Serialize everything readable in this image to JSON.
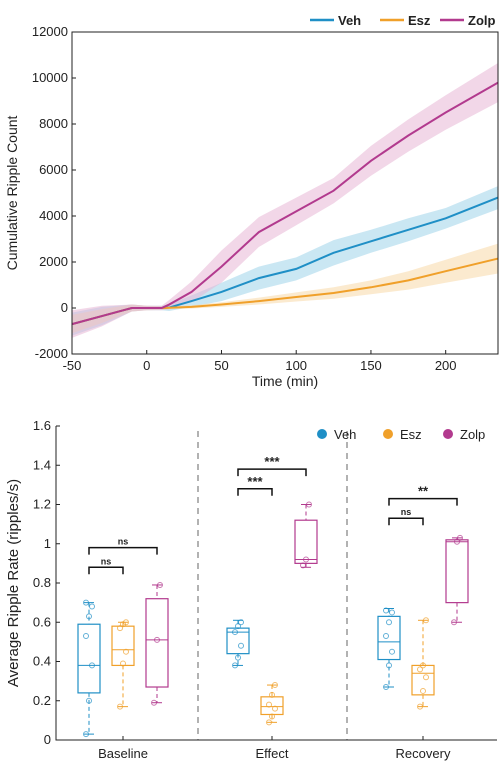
{
  "chart_data": [
    {
      "type": "line",
      "xlabel": "Time (min)",
      "ylabel": "Cumulative Ripple Count",
      "xlim": [
        -50,
        235
      ],
      "ylim": [
        -2000,
        12000
      ],
      "x_ticks": [
        -50,
        0,
        50,
        100,
        150,
        200
      ],
      "y_ticks": [
        -2000,
        0,
        2000,
        4000,
        6000,
        8000,
        10000,
        12000
      ],
      "legend_position": "top-right",
      "series": [
        {
          "name": "Veh",
          "color": "#1f8fc6",
          "band_color": "#9fd3ea",
          "x": [
            -50,
            -30,
            -10,
            0,
            10,
            15,
            30,
            50,
            75,
            100,
            125,
            150,
            175,
            200,
            235
          ],
          "y": [
            -700,
            -350,
            0,
            0,
            0,
            20,
            300,
            700,
            1300,
            1700,
            2400,
            2900,
            3400,
            3900,
            4800
          ],
          "band": [
            500,
            400,
            150,
            100,
            100,
            150,
            250,
            400,
            500,
            500,
            550,
            500,
            500,
            450,
            500
          ]
        },
        {
          "name": "Esz",
          "color": "#f0a02a",
          "band_color": "#f8d8a8",
          "x": [
            -50,
            -30,
            -10,
            0,
            10,
            15,
            30,
            50,
            75,
            100,
            125,
            150,
            175,
            200,
            235
          ],
          "y": [
            -700,
            -350,
            0,
            0,
            0,
            10,
            50,
            150,
            300,
            480,
            650,
            900,
            1200,
            1600,
            2150
          ],
          "band": [
            400,
            300,
            150,
            100,
            80,
            60,
            70,
            100,
            150,
            200,
            250,
            300,
            400,
            500,
            650
          ]
        },
        {
          "name": "Zolp",
          "color": "#b23a8e",
          "band_color": "#e8b6d6",
          "x": [
            -50,
            -30,
            -10,
            0,
            10,
            15,
            30,
            50,
            75,
            100,
            125,
            150,
            175,
            200,
            235
          ],
          "y": [
            -700,
            -350,
            0,
            0,
            0,
            150,
            700,
            1800,
            3300,
            4200,
            5100,
            6400,
            7500,
            8500,
            9800
          ],
          "band": [
            600,
            450,
            150,
            100,
            100,
            200,
            450,
            700,
            650,
            600,
            550,
            650,
            700,
            750,
            850
          ]
        }
      ]
    },
    {
      "type": "box",
      "ylabel": "Average Ripple Rate (ripples/s)",
      "ylim": [
        0,
        1.6
      ],
      "y_ticks": [
        "0",
        "0.2",
        "0.4",
        "0.6",
        "0.8",
        "1",
        "1.2",
        "1.4",
        "1.6"
      ],
      "groups": [
        "Baseline",
        "Effect",
        "Recovery"
      ],
      "legend_position": "top-right",
      "series": [
        {
          "name": "Veh",
          "color": "#1f8fc6",
          "boxes": [
            {
              "min": 0.03,
              "q1": 0.24,
              "median": 0.38,
              "q3": 0.59,
              "max": 0.7,
              "points": [
                0.03,
                0.2,
                0.38,
                0.53,
                0.63,
                0.68,
                0.7
              ]
            },
            {
              "min": 0.38,
              "q1": 0.44,
              "median": 0.55,
              "q3": 0.57,
              "max": 0.61,
              "points": [
                0.38,
                0.42,
                0.48,
                0.55,
                0.58,
                0.6
              ]
            },
            {
              "min": 0.27,
              "q1": 0.41,
              "median": 0.5,
              "q3": 0.63,
              "max": 0.67,
              "points": [
                0.27,
                0.38,
                0.45,
                0.53,
                0.6,
                0.65,
                0.66
              ]
            }
          ]
        },
        {
          "name": "Esz",
          "color": "#f0a02a",
          "boxes": [
            {
              "min": 0.17,
              "q1": 0.38,
              "median": 0.46,
              "q3": 0.58,
              "max": 0.6,
              "points": [
                0.17,
                0.39,
                0.45,
                0.57,
                0.59,
                0.6
              ]
            },
            {
              "min": 0.09,
              "q1": 0.13,
              "median": 0.17,
              "q3": 0.22,
              "max": 0.28,
              "points": [
                0.09,
                0.12,
                0.16,
                0.18,
                0.23,
                0.28
              ]
            },
            {
              "min": 0.17,
              "q1": 0.23,
              "median": 0.34,
              "q3": 0.38,
              "max": 0.61,
              "points": [
                0.17,
                0.25,
                0.32,
                0.36,
                0.38,
                0.61
              ]
            }
          ]
        },
        {
          "name": "Zolp",
          "color": "#b23a8e",
          "boxes": [
            {
              "min": 0.19,
              "q1": 0.27,
              "median": 0.51,
              "q3": 0.72,
              "max": 0.79,
              "points": [
                0.19,
                0.51,
                0.79
              ]
            },
            {
              "min": 0.88,
              "q1": 0.9,
              "median": 0.92,
              "q3": 1.12,
              "max": 1.2,
              "points": [
                0.89,
                0.92,
                1.2
              ]
            },
            {
              "min": 0.6,
              "q1": 0.7,
              "median": 1.01,
              "q3": 1.02,
              "max": 1.03,
              "points": [
                0.6,
                1.01,
                1.03
              ]
            }
          ]
        }
      ],
      "significance": [
        {
          "group": 0,
          "from": "Veh",
          "to": "Esz",
          "label": "ns",
          "y": 0.88
        },
        {
          "group": 0,
          "from": "Veh",
          "to": "Zolp",
          "label": "ns",
          "y": 0.98
        },
        {
          "group": 1,
          "from": "Veh",
          "to": "Esz",
          "label": "***",
          "y": 1.28
        },
        {
          "group": 1,
          "from": "Veh",
          "to": "Zolp",
          "label": "***",
          "y": 1.38
        },
        {
          "group": 2,
          "from": "Veh",
          "to": "Esz",
          "label": "ns",
          "y": 1.13
        },
        {
          "group": 2,
          "from": "Veh",
          "to": "Zolp",
          "label": "**",
          "y": 1.23
        }
      ]
    }
  ]
}
